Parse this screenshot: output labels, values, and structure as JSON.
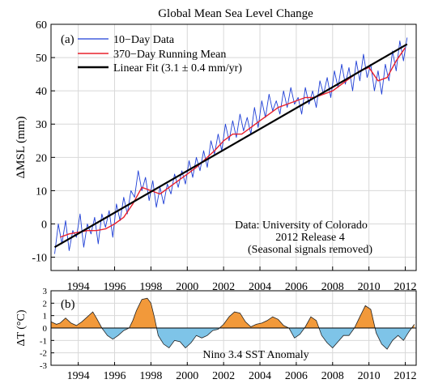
{
  "figure_title": "Global Mean Sea Level Change",
  "chart_data": [
    {
      "panel": "(a)",
      "type": "line",
      "title": "Global Mean Sea Level Change",
      "ylabel": "ΔMSL (mm)",
      "xlabel": "",
      "xlim": [
        1992.5,
        2012.6
      ],
      "ylim": [
        -14,
        60
      ],
      "xticks": [
        1994,
        1996,
        1998,
        2000,
        2002,
        2004,
        2006,
        2008,
        2010,
        2012
      ],
      "yticks": [
        -10,
        0,
        10,
        20,
        30,
        40,
        50,
        60
      ],
      "grid": true,
      "legend_position": "top-left",
      "annotation": [
        "Data: University of Colorado",
        "2012 Release 4",
        "(Seasonal signals removed)"
      ],
      "series": [
        {
          "name": "10−Day Data",
          "color": "#1f3fd6",
          "x": [
            1992.7,
            1992.9,
            1993.1,
            1993.3,
            1993.5,
            1993.7,
            1993.9,
            1994.1,
            1994.3,
            1994.5,
            1994.7,
            1994.9,
            1995.1,
            1995.3,
            1995.5,
            1995.7,
            1995.9,
            1996.1,
            1996.3,
            1996.5,
            1996.7,
            1996.9,
            1997.1,
            1997.3,
            1997.5,
            1997.7,
            1997.9,
            1998.1,
            1998.3,
            1998.5,
            1998.7,
            1998.9,
            1999.1,
            1999.3,
            1999.5,
            1999.7,
            1999.9,
            2000.1,
            2000.3,
            2000.5,
            2000.7,
            2000.9,
            2001.1,
            2001.3,
            2001.5,
            2001.7,
            2001.9,
            2002.1,
            2002.3,
            2002.5,
            2002.7,
            2002.9,
            2003.1,
            2003.3,
            2003.5,
            2003.7,
            2003.9,
            2004.1,
            2004.3,
            2004.5,
            2004.7,
            2004.9,
            2005.1,
            2005.3,
            2005.5,
            2005.7,
            2005.9,
            2006.1,
            2006.3,
            2006.5,
            2006.7,
            2006.9,
            2007.1,
            2007.3,
            2007.5,
            2007.7,
            2007.9,
            2008.1,
            2008.3,
            2008.5,
            2008.7,
            2008.9,
            2009.1,
            2009.3,
            2009.5,
            2009.7,
            2009.9,
            2010.1,
            2010.3,
            2010.5,
            2010.7,
            2010.9,
            2011.1,
            2011.3,
            2011.5,
            2011.7,
            2011.9,
            2012.1
          ],
          "y": [
            -9,
            0,
            -6,
            1,
            -8,
            -2,
            -4,
            3,
            -7,
            0,
            -3,
            2,
            -6,
            3,
            -1,
            4,
            -4,
            6,
            1,
            8,
            3,
            10,
            8,
            16,
            10,
            14,
            7,
            13,
            5,
            11,
            6,
            12,
            9,
            15,
            11,
            16,
            12,
            19,
            14,
            20,
            16,
            22,
            17,
            25,
            21,
            27,
            22,
            30,
            25,
            31,
            26,
            33,
            28,
            32,
            27,
            35,
            29,
            37,
            32,
            39,
            34,
            37,
            33,
            40,
            35,
            41,
            36,
            38,
            33,
            41,
            36,
            40,
            35,
            43,
            39,
            44,
            38,
            46,
            41,
            48,
            42,
            47,
            40,
            49,
            43,
            51,
            44,
            48,
            40,
            46,
            39,
            48,
            43,
            52,
            46,
            55,
            49,
            56
          ]
        },
        {
          "name": "370−Day Running Mean",
          "color": "#e8202c",
          "x": [
            1993.0,
            1993.5,
            1994.0,
            1994.5,
            1995.0,
            1995.5,
            1996.0,
            1996.5,
            1997.0,
            1997.5,
            1998.0,
            1998.5,
            1999.0,
            1999.5,
            2000.0,
            2000.5,
            2001.0,
            2001.5,
            2002.0,
            2002.5,
            2003.0,
            2003.5,
            2004.0,
            2004.5,
            2005.0,
            2005.5,
            2006.0,
            2006.5,
            2007.0,
            2007.5,
            2008.0,
            2008.5,
            2009.0,
            2009.5,
            2010.0,
            2010.5,
            2011.0,
            2011.5,
            2012.0
          ],
          "y": [
            -4,
            -3,
            -2.5,
            -2,
            -2,
            -1.5,
            0,
            2,
            6,
            11,
            10,
            9,
            11,
            13,
            15,
            17,
            19.5,
            22,
            25,
            27,
            27,
            29,
            31,
            33,
            35,
            36,
            37,
            38,
            38,
            39,
            40,
            42,
            44,
            46,
            47,
            43,
            44,
            49,
            53
          ]
        },
        {
          "name": "Linear Fit (3.1 ± 0.4 mm/yr)",
          "color": "#000000",
          "x": [
            1992.7,
            2012.1
          ],
          "y": [
            -7,
            54
          ]
        }
      ]
    },
    {
      "panel": "(b)",
      "type": "area",
      "title": "",
      "ylabel": "ΔT (°C)",
      "xlabel": "",
      "xlim": [
        1992.5,
        2012.6
      ],
      "ylim": [
        -3,
        3
      ],
      "xticks": [
        1994,
        1996,
        1998,
        2000,
        2002,
        2004,
        2006,
        2008,
        2010,
        2012
      ],
      "yticks": [
        -3,
        -2,
        -1,
        0,
        1,
        2,
        3
      ],
      "grid": true,
      "annotation": [
        "Nino 3.4 SST Anomaly"
      ],
      "positive_color": "#f2993a",
      "negative_color": "#7ec4e8",
      "series": [
        {
          "name": "Nino 3.4 SST Anomaly",
          "x": [
            1992.5,
            1992.8,
            1993.0,
            1993.3,
            1993.6,
            1993.9,
            1994.2,
            1994.5,
            1994.8,
            1995.0,
            1995.3,
            1995.6,
            1995.9,
            1996.2,
            1996.5,
            1996.8,
            1997.0,
            1997.2,
            1997.5,
            1997.8,
            1998.0,
            1998.2,
            1998.4,
            1998.7,
            1999.0,
            1999.3,
            1999.6,
            1999.9,
            2000.2,
            2000.5,
            2000.8,
            2001.1,
            2001.4,
            2001.7,
            2002.0,
            2002.3,
            2002.6,
            2002.9,
            2003.2,
            2003.5,
            2003.8,
            2004.1,
            2004.4,
            2004.7,
            2005.0,
            2005.3,
            2005.6,
            2005.9,
            2006.2,
            2006.5,
            2006.8,
            2007.1,
            2007.4,
            2007.7,
            2008.0,
            2008.3,
            2008.6,
            2008.9,
            2009.2,
            2009.5,
            2009.8,
            2010.1,
            2010.4,
            2010.7,
            2011.0,
            2011.3,
            2011.6,
            2011.9,
            2012.2,
            2012.5
          ],
          "y": [
            0.5,
            0.3,
            0.4,
            0.8,
            0.4,
            0.2,
            0.5,
            0.9,
            1.3,
            0.8,
            0.0,
            -0.6,
            -0.9,
            -0.6,
            -0.2,
            0.0,
            0.6,
            1.4,
            2.3,
            2.4,
            2.0,
            0.8,
            -0.6,
            -1.3,
            -1.6,
            -1.0,
            -1.1,
            -1.6,
            -1.2,
            -0.6,
            -0.8,
            -0.6,
            -0.2,
            -0.1,
            0.3,
            0.9,
            1.3,
            1.2,
            0.5,
            0.1,
            0.3,
            0.4,
            0.6,
            0.9,
            0.7,
            0.2,
            0.0,
            -0.8,
            -0.5,
            0.1,
            0.9,
            0.6,
            -0.6,
            -1.2,
            -1.6,
            -1.1,
            -0.6,
            -0.6,
            0.0,
            0.9,
            1.8,
            1.5,
            -0.4,
            -1.3,
            -1.7,
            -1.0,
            -0.6,
            -1.0,
            -0.3,
            0.3
          ]
        }
      ]
    }
  ]
}
